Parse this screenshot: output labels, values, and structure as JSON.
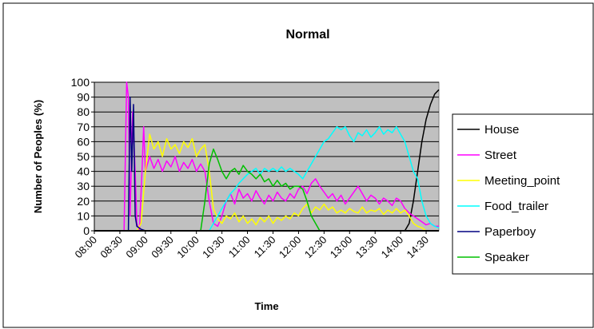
{
  "chart_data": {
    "type": "line",
    "title": "Normal",
    "xlabel": "Time",
    "ylabel": "Number of Peoples (%)",
    "ylim": [
      0,
      100
    ],
    "yticks": [
      0,
      10,
      20,
      30,
      40,
      50,
      60,
      70,
      80,
      90,
      100
    ],
    "x_range": [
      "08:00",
      "14:45"
    ],
    "xticks": [
      "08:00",
      "08:30",
      "09:00",
      "09:30",
      "10:00",
      "10:30",
      "11:00",
      "11:30",
      "12:00",
      "12:30",
      "13:00",
      "13:30",
      "14:00",
      "14:30"
    ],
    "grid": "horizontal",
    "plot_background": "#c0c0c0",
    "legend_position": "right",
    "series": [
      {
        "name": "House",
        "color": "#000000",
        "points": [
          [
            "08:00",
            0
          ],
          [
            "14:05",
            0
          ],
          [
            "14:10",
            5
          ],
          [
            "14:15",
            20
          ],
          [
            "14:20",
            40
          ],
          [
            "14:25",
            60
          ],
          [
            "14:30",
            75
          ],
          [
            "14:35",
            85
          ],
          [
            "14:40",
            92
          ],
          [
            "14:45",
            95
          ]
        ]
      },
      {
        "name": "Street",
        "color": "#ff00ff",
        "points": [
          [
            "08:00",
            0
          ],
          [
            "08:35",
            0
          ],
          [
            "08:38",
            100
          ],
          [
            "08:40",
            90
          ],
          [
            "08:42",
            10
          ],
          [
            "08:45",
            80
          ],
          [
            "08:48",
            40
          ],
          [
            "08:50",
            5
          ],
          [
            "08:53",
            0
          ],
          [
            "08:56",
            40
          ],
          [
            "08:58",
            70
          ],
          [
            "09:00",
            40
          ],
          [
            "09:05",
            50
          ],
          [
            "09:10",
            42
          ],
          [
            "09:15",
            48
          ],
          [
            "09:20",
            40
          ],
          [
            "09:25",
            47
          ],
          [
            "09:30",
            43
          ],
          [
            "09:35",
            50
          ],
          [
            "09:40",
            40
          ],
          [
            "09:45",
            46
          ],
          [
            "09:50",
            42
          ],
          [
            "09:55",
            48
          ],
          [
            "10:00",
            40
          ],
          [
            "10:05",
            45
          ],
          [
            "10:10",
            40
          ],
          [
            "10:15",
            20
          ],
          [
            "10:20",
            5
          ],
          [
            "10:25",
            3
          ],
          [
            "10:30",
            10
          ],
          [
            "10:35",
            20
          ],
          [
            "10:40",
            25
          ],
          [
            "10:45",
            18
          ],
          [
            "10:50",
            28
          ],
          [
            "10:55",
            22
          ],
          [
            "11:00",
            25
          ],
          [
            "11:05",
            20
          ],
          [
            "11:10",
            27
          ],
          [
            "11:15",
            22
          ],
          [
            "11:20",
            18
          ],
          [
            "11:25",
            24
          ],
          [
            "11:30",
            20
          ],
          [
            "11:35",
            26
          ],
          [
            "11:40",
            22
          ],
          [
            "11:45",
            20
          ],
          [
            "11:50",
            25
          ],
          [
            "11:55",
            22
          ],
          [
            "12:00",
            28
          ],
          [
            "12:05",
            30
          ],
          [
            "12:10",
            25
          ],
          [
            "12:15",
            32
          ],
          [
            "12:20",
            35
          ],
          [
            "12:25",
            30
          ],
          [
            "12:30",
            26
          ],
          [
            "12:35",
            22
          ],
          [
            "12:40",
            25
          ],
          [
            "12:45",
            20
          ],
          [
            "12:50",
            24
          ],
          [
            "12:55",
            18
          ],
          [
            "13:00",
            22
          ],
          [
            "13:05",
            26
          ],
          [
            "13:10",
            30
          ],
          [
            "13:15",
            25
          ],
          [
            "13:20",
            20
          ],
          [
            "13:25",
            24
          ],
          [
            "13:30",
            22
          ],
          [
            "13:35",
            18
          ],
          [
            "13:40",
            22
          ],
          [
            "13:45",
            20
          ],
          [
            "13:50",
            17
          ],
          [
            "13:55",
            22
          ],
          [
            "14:00",
            20
          ],
          [
            "14:05",
            15
          ],
          [
            "14:10",
            12
          ],
          [
            "14:15",
            10
          ],
          [
            "14:20",
            8
          ],
          [
            "14:25",
            6
          ],
          [
            "14:30",
            4
          ],
          [
            "14:35",
            5
          ],
          [
            "14:40",
            3
          ],
          [
            "14:45",
            3
          ]
        ]
      },
      {
        "name": "Meeting_point",
        "color": "#ffff00",
        "points": [
          [
            "08:00",
            0
          ],
          [
            "08:50",
            0
          ],
          [
            "08:55",
            5
          ],
          [
            "09:00",
            40
          ],
          [
            "09:05",
            65
          ],
          [
            "09:10",
            55
          ],
          [
            "09:15",
            60
          ],
          [
            "09:20",
            50
          ],
          [
            "09:25",
            62
          ],
          [
            "09:30",
            55
          ],
          [
            "09:35",
            58
          ],
          [
            "09:40",
            52
          ],
          [
            "09:45",
            60
          ],
          [
            "09:50",
            56
          ],
          [
            "09:55",
            62
          ],
          [
            "10:00",
            50
          ],
          [
            "10:05",
            55
          ],
          [
            "10:10",
            58
          ],
          [
            "10:15",
            40
          ],
          [
            "10:20",
            15
          ],
          [
            "10:25",
            8
          ],
          [
            "10:30",
            5
          ],
          [
            "10:35",
            10
          ],
          [
            "10:40",
            8
          ],
          [
            "10:45",
            12
          ],
          [
            "10:50",
            6
          ],
          [
            "10:55",
            10
          ],
          [
            "11:00",
            5
          ],
          [
            "11:05",
            8
          ],
          [
            "11:10",
            4
          ],
          [
            "11:15",
            9
          ],
          [
            "11:20",
            6
          ],
          [
            "11:25",
            10
          ],
          [
            "11:30",
            5
          ],
          [
            "11:35",
            9
          ],
          [
            "11:40",
            7
          ],
          [
            "11:45",
            10
          ],
          [
            "11:50",
            8
          ],
          [
            "11:55",
            12
          ],
          [
            "12:00",
            10
          ],
          [
            "12:05",
            15
          ],
          [
            "12:10",
            18
          ],
          [
            "12:15",
            12
          ],
          [
            "12:20",
            16
          ],
          [
            "12:25",
            14
          ],
          [
            "12:30",
            18
          ],
          [
            "12:35",
            14
          ],
          [
            "12:40",
            16
          ],
          [
            "12:45",
            12
          ],
          [
            "12:50",
            14
          ],
          [
            "12:55",
            12
          ],
          [
            "13:00",
            15
          ],
          [
            "13:05",
            13
          ],
          [
            "13:10",
            12
          ],
          [
            "13:15",
            16
          ],
          [
            "13:20",
            12
          ],
          [
            "13:25",
            14
          ],
          [
            "13:30",
            13
          ],
          [
            "13:35",
            15
          ],
          [
            "13:40",
            11
          ],
          [
            "13:45",
            14
          ],
          [
            "13:50",
            12
          ],
          [
            "13:55",
            15
          ],
          [
            "14:00",
            12
          ],
          [
            "14:05",
            14
          ],
          [
            "14:10",
            10
          ],
          [
            "14:15",
            5
          ],
          [
            "14:20",
            3
          ],
          [
            "14:25",
            2
          ],
          [
            "14:30",
            0
          ],
          [
            "14:45",
            0
          ]
        ]
      },
      {
        "name": "Food_trailer",
        "color": "#00ffff",
        "points": [
          [
            "08:00",
            0
          ],
          [
            "10:15",
            0
          ],
          [
            "10:20",
            5
          ],
          [
            "10:25",
            10
          ],
          [
            "10:30",
            15
          ],
          [
            "10:35",
            20
          ],
          [
            "10:40",
            25
          ],
          [
            "10:45",
            28
          ],
          [
            "10:50",
            32
          ],
          [
            "10:55",
            35
          ],
          [
            "11:00",
            38
          ],
          [
            "11:05",
            40
          ],
          [
            "11:10",
            42
          ],
          [
            "11:15",
            38
          ],
          [
            "11:20",
            42
          ],
          [
            "11:25",
            40
          ],
          [
            "11:30",
            42
          ],
          [
            "11:35",
            40
          ],
          [
            "11:40",
            43
          ],
          [
            "11:45",
            40
          ],
          [
            "11:50",
            42
          ],
          [
            "11:55",
            40
          ],
          [
            "12:00",
            38
          ],
          [
            "12:05",
            35
          ],
          [
            "12:10",
            40
          ],
          [
            "12:15",
            45
          ],
          [
            "12:20",
            50
          ],
          [
            "12:25",
            55
          ],
          [
            "12:30",
            60
          ],
          [
            "12:35",
            62
          ],
          [
            "12:40",
            66
          ],
          [
            "12:45",
            70
          ],
          [
            "12:50",
            68
          ],
          [
            "12:55",
            70
          ],
          [
            "13:00",
            64
          ],
          [
            "13:05",
            60
          ],
          [
            "13:10",
            66
          ],
          [
            "13:15",
            64
          ],
          [
            "13:20",
            68
          ],
          [
            "13:25",
            63
          ],
          [
            "13:30",
            66
          ],
          [
            "13:35",
            70
          ],
          [
            "13:40",
            65
          ],
          [
            "13:45",
            68
          ],
          [
            "13:50",
            66
          ],
          [
            "13:55",
            70
          ],
          [
            "14:00",
            65
          ],
          [
            "14:05",
            60
          ],
          [
            "14:10",
            50
          ],
          [
            "14:15",
            40
          ],
          [
            "14:20",
            35
          ],
          [
            "14:25",
            20
          ],
          [
            "14:30",
            10
          ],
          [
            "14:35",
            5
          ],
          [
            "14:40",
            3
          ],
          [
            "14:45",
            2
          ]
        ]
      },
      {
        "name": "Paperboy",
        "color": "#000080",
        "points": [
          [
            "08:00",
            0
          ],
          [
            "08:40",
            0
          ],
          [
            "08:42",
            90
          ],
          [
            "08:44",
            40
          ],
          [
            "08:46",
            85
          ],
          [
            "08:48",
            10
          ],
          [
            "08:50",
            3
          ],
          [
            "08:55",
            1
          ],
          [
            "09:00",
            0
          ],
          [
            "14:45",
            0
          ]
        ]
      },
      {
        "name": "Speaker",
        "color": "#00c000",
        "points": [
          [
            "08:00",
            0
          ],
          [
            "10:05",
            0
          ],
          [
            "10:10",
            20
          ],
          [
            "10:15",
            45
          ],
          [
            "10:20",
            55
          ],
          [
            "10:25",
            48
          ],
          [
            "10:30",
            40
          ],
          [
            "10:35",
            35
          ],
          [
            "10:40",
            40
          ],
          [
            "10:45",
            42
          ],
          [
            "10:50",
            38
          ],
          [
            "10:55",
            44
          ],
          [
            "11:00",
            40
          ],
          [
            "11:05",
            38
          ],
          [
            "11:10",
            35
          ],
          [
            "11:15",
            38
          ],
          [
            "11:20",
            33
          ],
          [
            "11:25",
            35
          ],
          [
            "11:30",
            30
          ],
          [
            "11:35",
            34
          ],
          [
            "11:40",
            30
          ],
          [
            "11:45",
            32
          ],
          [
            "11:50",
            28
          ],
          [
            "11:55",
            30
          ],
          [
            "12:00",
            30
          ],
          [
            "12:05",
            28
          ],
          [
            "12:10",
            20
          ],
          [
            "12:15",
            10
          ],
          [
            "12:20",
            5
          ],
          [
            "12:25",
            0
          ],
          [
            "14:45",
            0
          ]
        ]
      }
    ]
  }
}
